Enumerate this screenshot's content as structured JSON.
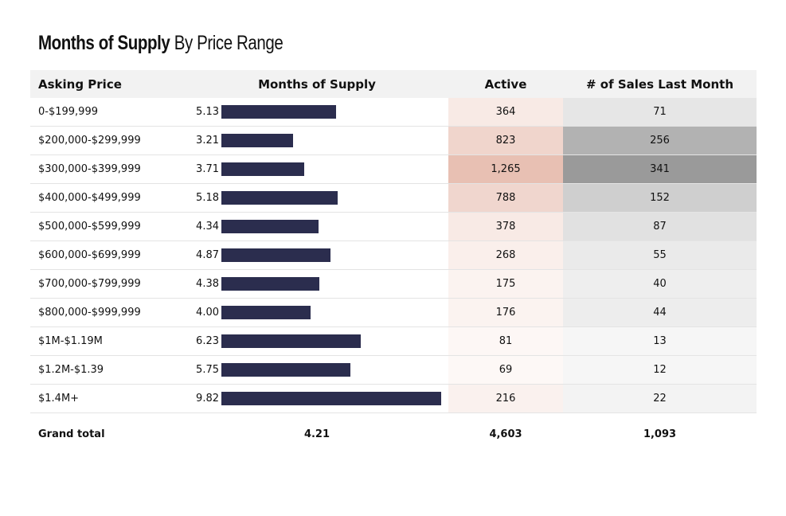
{
  "title_bold": "Months of Supply",
  "title_rest": "By Price Range",
  "chart_data": {
    "type": "table",
    "columns": [
      "Asking Price",
      "Months of Supply",
      "Active",
      "# of Sales Last Month"
    ],
    "rows": [
      {
        "price": "0-$199,999",
        "mos": "5.13",
        "mos_value": 5.13,
        "active": "364",
        "active_value": 364,
        "sales": "71",
        "sales_value": 71
      },
      {
        "price": "$200,000-$299,999",
        "mos": "3.21",
        "mos_value": 3.21,
        "active": "823",
        "active_value": 823,
        "sales": "256",
        "sales_value": 256
      },
      {
        "price": "$300,000-$399,999",
        "mos": "3.71",
        "mos_value": 3.71,
        "active": "1,265",
        "active_value": 1265,
        "sales": "341",
        "sales_value": 341
      },
      {
        "price": "$400,000-$499,999",
        "mos": "5.18",
        "mos_value": 5.18,
        "active": "788",
        "active_value": 788,
        "sales": "152",
        "sales_value": 152
      },
      {
        "price": "$500,000-$599,999",
        "mos": "4.34",
        "mos_value": 4.34,
        "active": "378",
        "active_value": 378,
        "sales": "87",
        "sales_value": 87
      },
      {
        "price": "$600,000-$699,999",
        "mos": "4.87",
        "mos_value": 4.87,
        "active": "268",
        "active_value": 268,
        "sales": "55",
        "sales_value": 55
      },
      {
        "price": "$700,000-$799,999",
        "mos": "4.38",
        "mos_value": 4.38,
        "active": "175",
        "active_value": 175,
        "sales": "40",
        "sales_value": 40
      },
      {
        "price": "$800,000-$999,999",
        "mos": "4.00",
        "mos_value": 4.0,
        "active": "176",
        "active_value": 176,
        "sales": "44",
        "sales_value": 44
      },
      {
        "price": "$1M-$1.19M",
        "mos": "6.23",
        "mos_value": 6.23,
        "active": "81",
        "active_value": 81,
        "sales": "13",
        "sales_value": 13
      },
      {
        "price": "$1.2M-$1.39",
        "mos": "5.75",
        "mos_value": 5.75,
        "active": "69",
        "active_value": 69,
        "sales": "12",
        "sales_value": 12
      },
      {
        "price": "$1.4M+",
        "mos": "9.82",
        "mos_value": 9.82,
        "active": "216",
        "active_value": 216,
        "sales": "22",
        "sales_value": 22
      }
    ],
    "total": {
      "label": "Grand total",
      "mos": "4.21",
      "active": "4,603",
      "sales": "1,093"
    },
    "colors": {
      "bar": "#2b2d4e",
      "active_low": "#fdf8f6",
      "active_high": "#e8c0b3",
      "sales_low": "#f6f6f6",
      "sales_high": "#9a9a9a"
    }
  }
}
